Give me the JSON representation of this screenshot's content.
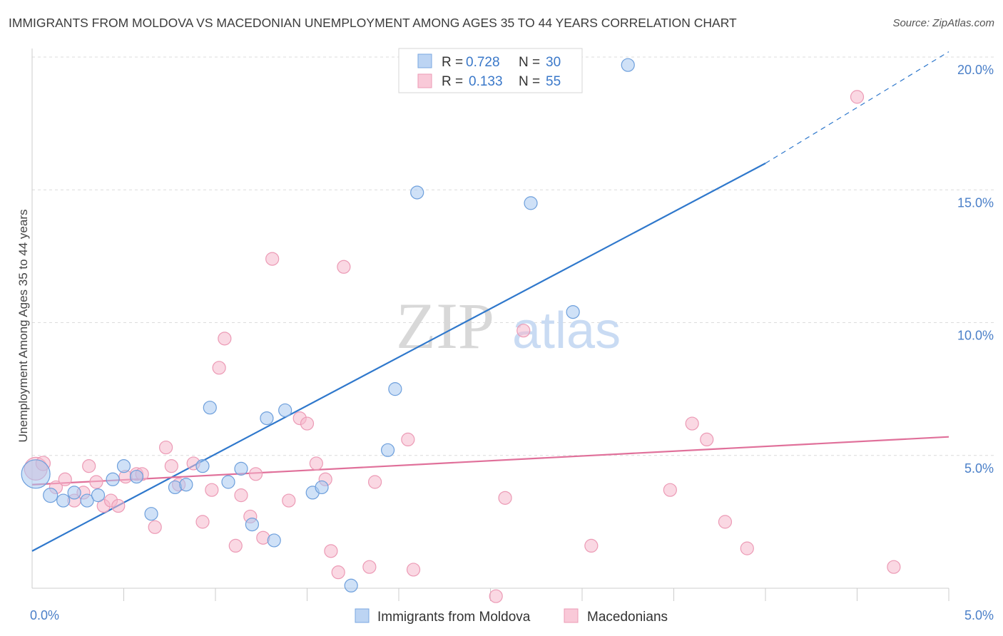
{
  "header": {
    "title": "IMMIGRANTS FROM MOLDOVA VS MACEDONIAN UNEMPLOYMENT AMONG AGES 35 TO 44 YEARS CORRELATION CHART",
    "source": "Source: ZipAtlas.com"
  },
  "watermark": {
    "zip": "ZIP",
    "atlas": "atlas"
  },
  "legend": {
    "rows": [
      {
        "r_label": "R =",
        "r_value": "0.728",
        "n_label": "N =",
        "n_value": "30"
      },
      {
        "r_label": "R =",
        "r_value": "0.133",
        "n_label": "N =",
        "n_value": "55"
      }
    ]
  },
  "bottom_legend": [
    "Immigrants from Moldova",
    "Macedonians"
  ],
  "chart_data": {
    "type": "scatter",
    "title": "IMMIGRANTS FROM MOLDOVA VS MACEDONIAN UNEMPLOYMENT AMONG AGES 35 TO 44 YEARS CORRELATION CHART",
    "xlabel": "",
    "ylabel": "Unemployment Among Ages 35 to 44 years",
    "xlim": [
      0,
      5
    ],
    "ylim": [
      0,
      20
    ],
    "x_tick_labels": [
      "0.0%",
      "5.0%"
    ],
    "y_ticks": [
      5,
      10,
      15,
      20
    ],
    "y_tick_labels": [
      "5.0%",
      "10.0%",
      "15.0%",
      "20.0%"
    ],
    "colors": {
      "moldova": "#a8c8f0",
      "moldova_line": "#2f78cc",
      "macedonians": "#f5b8cc",
      "macedonians_line": "#e0709a"
    },
    "series": [
      {
        "name": "Immigrants from Moldova",
        "R": 0.728,
        "N": 30,
        "trend": {
          "x": [
            0,
            4
          ],
          "y": [
            1.4,
            16.0
          ],
          "dash_x": [
            4,
            5
          ],
          "dash_y": [
            16.0,
            20.2
          ]
        },
        "points": [
          [
            0.02,
            4.3,
            20
          ],
          [
            0.1,
            3.5,
            10
          ],
          [
            0.17,
            3.3,
            9
          ],
          [
            0.23,
            3.6,
            9
          ],
          [
            0.3,
            3.3,
            9
          ],
          [
            0.36,
            3.5,
            9
          ],
          [
            0.44,
            4.1,
            9
          ],
          [
            0.5,
            4.6,
            9
          ],
          [
            0.57,
            4.2,
            9
          ],
          [
            0.65,
            2.8,
            9
          ],
          [
            0.78,
            3.8,
            9
          ],
          [
            0.84,
            3.9,
            9
          ],
          [
            0.93,
            4.6,
            9
          ],
          [
            0.97,
            6.8,
            9
          ],
          [
            1.07,
            4.0,
            9
          ],
          [
            1.14,
            4.5,
            9
          ],
          [
            1.2,
            2.4,
            9
          ],
          [
            1.28,
            6.4,
            9
          ],
          [
            1.32,
            1.8,
            9
          ],
          [
            1.38,
            6.7,
            9
          ],
          [
            1.53,
            3.6,
            9
          ],
          [
            1.58,
            3.8,
            9
          ],
          [
            1.74,
            0.1,
            9
          ],
          [
            1.94,
            5.2,
            9
          ],
          [
            1.98,
            7.5,
            9
          ],
          [
            2.1,
            14.9,
            9
          ],
          [
            2.72,
            14.5,
            9
          ],
          [
            2.95,
            10.4,
            9
          ],
          [
            3.25,
            19.7,
            9
          ]
        ]
      },
      {
        "name": "Macedonians",
        "R": 0.133,
        "N": 55,
        "trend": {
          "x": [
            0,
            5
          ],
          "y": [
            3.9,
            5.7
          ]
        },
        "points": [
          [
            0.02,
            4.5,
            16
          ],
          [
            0.06,
            4.7,
            10
          ],
          [
            0.13,
            3.8,
            9
          ],
          [
            0.18,
            4.1,
            9
          ],
          [
            0.23,
            3.3,
            9
          ],
          [
            0.28,
            3.6,
            9
          ],
          [
            0.31,
            4.6,
            9
          ],
          [
            0.35,
            4.0,
            9
          ],
          [
            0.39,
            3.1,
            9
          ],
          [
            0.43,
            3.3,
            9
          ],
          [
            0.47,
            3.1,
            9
          ],
          [
            0.51,
            4.2,
            9
          ],
          [
            0.57,
            4.3,
            9
          ],
          [
            0.6,
            4.3,
            9
          ],
          [
            0.67,
            2.3,
            9
          ],
          [
            0.73,
            5.3,
            9
          ],
          [
            0.76,
            4.6,
            9
          ],
          [
            0.8,
            3.9,
            9
          ],
          [
            0.88,
            4.7,
            9
          ],
          [
            0.93,
            2.5,
            9
          ],
          [
            0.98,
            3.7,
            9
          ],
          [
            1.02,
            8.3,
            9
          ],
          [
            1.05,
            9.4,
            9
          ],
          [
            1.11,
            1.6,
            9
          ],
          [
            1.14,
            3.5,
            9
          ],
          [
            1.19,
            2.7,
            9
          ],
          [
            1.22,
            4.3,
            9
          ],
          [
            1.26,
            1.9,
            9
          ],
          [
            1.31,
            12.4,
            9
          ],
          [
            1.4,
            3.3,
            9
          ],
          [
            1.46,
            6.4,
            9
          ],
          [
            1.5,
            6.2,
            9
          ],
          [
            1.55,
            4.7,
            9
          ],
          [
            1.6,
            4.1,
            9
          ],
          [
            1.63,
            1.4,
            9
          ],
          [
            1.67,
            0.6,
            9
          ],
          [
            1.7,
            12.1,
            9
          ],
          [
            1.84,
            0.8,
            9
          ],
          [
            1.87,
            4.0,
            9
          ],
          [
            2.05,
            5.6,
            9
          ],
          [
            2.08,
            0.7,
            9
          ],
          [
            2.53,
            -0.3,
            9
          ],
          [
            2.58,
            3.4,
            9
          ],
          [
            2.68,
            9.7,
            9
          ],
          [
            3.05,
            1.6,
            9
          ],
          [
            3.48,
            3.7,
            9
          ],
          [
            3.6,
            6.2,
            9
          ],
          [
            3.68,
            5.6,
            9
          ],
          [
            3.78,
            2.5,
            9
          ],
          [
            3.9,
            1.5,
            9
          ],
          [
            4.5,
            18.5,
            9
          ],
          [
            4.7,
            0.8,
            9
          ]
        ]
      }
    ]
  }
}
